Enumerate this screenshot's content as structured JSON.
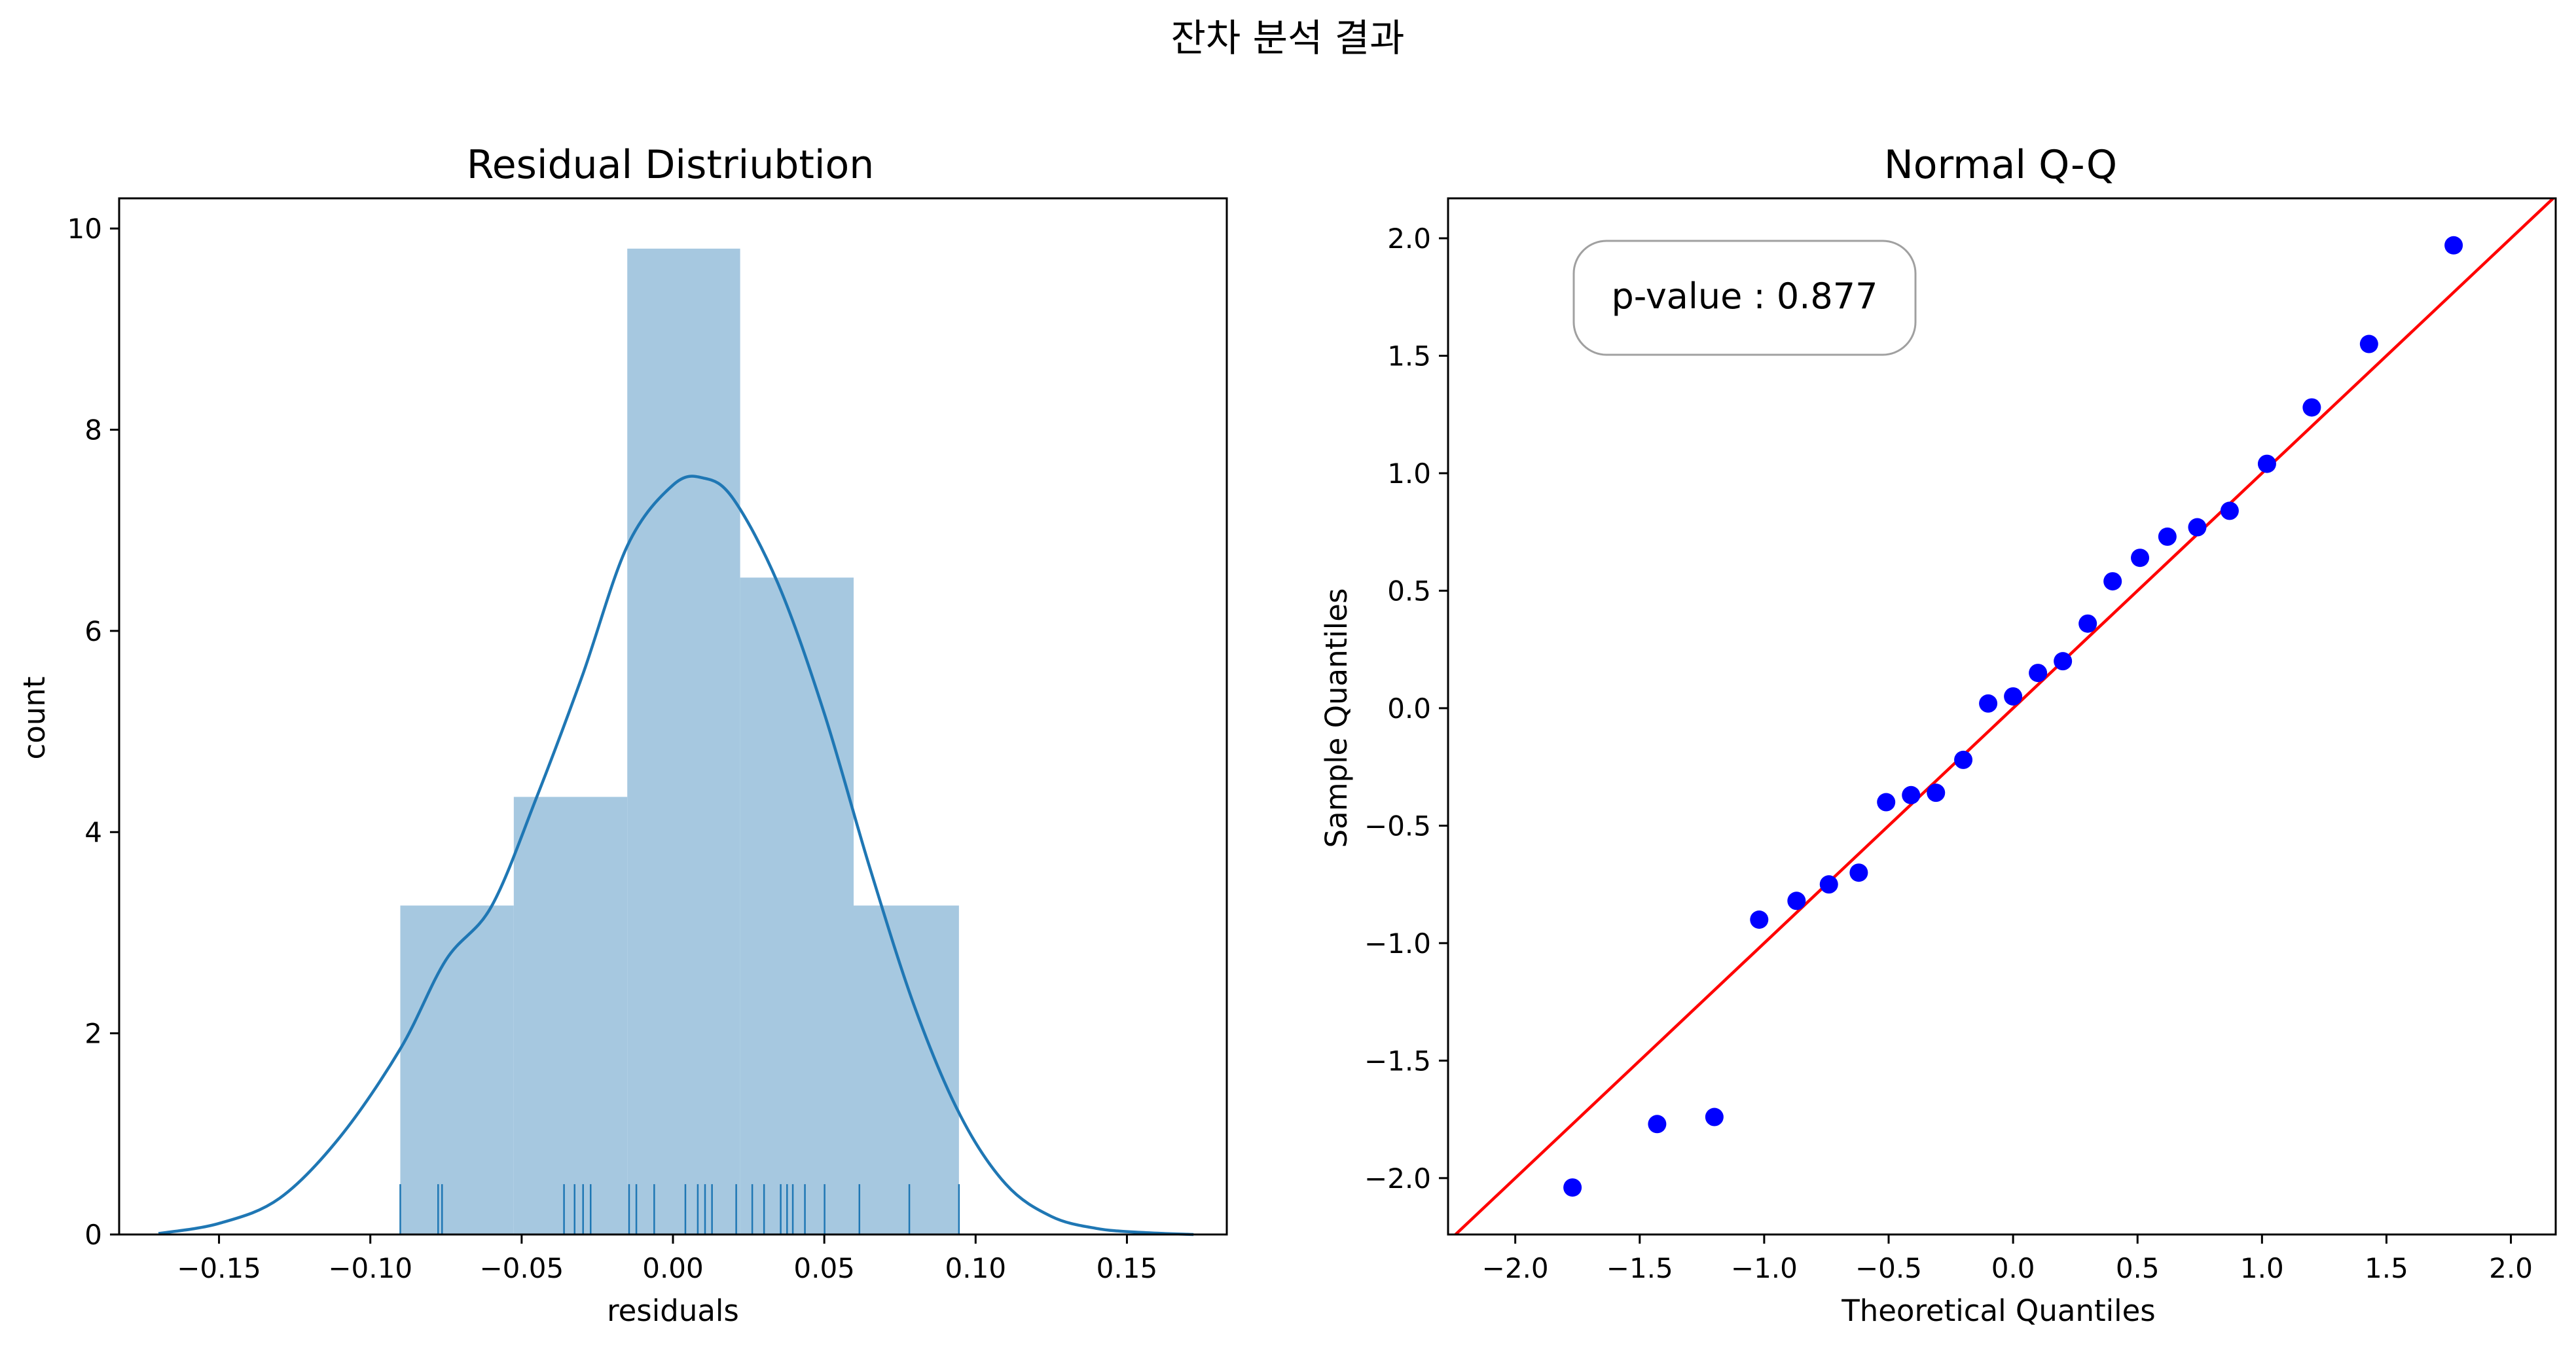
{
  "figure_title": "잔차 분석 결과",
  "chart_data": [
    {
      "type": "bar",
      "title": "Residual Distriubtion",
      "xlabel": "residuals",
      "ylabel": "count",
      "xlim": [
        -0.183,
        0.183
      ],
      "ylim": [
        0,
        10.3
      ],
      "xticks": [
        -0.15,
        -0.1,
        -0.05,
        0.0,
        0.05,
        0.1,
        0.15
      ],
      "xtick_labels": [
        "−0.15",
        "−0.10",
        "−0.05",
        "0.00",
        "0.05",
        "0.10",
        "0.15"
      ],
      "yticks": [
        0,
        2,
        4,
        6,
        8,
        10
      ],
      "ytick_labels": [
        "0",
        "2",
        "4",
        "6",
        "8",
        "10"
      ],
      "histogram": {
        "bin_edges": [
          -0.0901,
          -0.0526,
          -0.0151,
          0.0222,
          0.0597,
          0.0945
        ],
        "values": [
          3.27,
          4.35,
          9.8,
          6.53,
          3.27
        ]
      },
      "kde_curve": {
        "x": [
          -0.17,
          -0.15,
          -0.13,
          -0.11,
          -0.09,
          -0.075,
          -0.06,
          -0.045,
          -0.03,
          -0.015,
          0.0,
          0.01,
          0.02,
          0.035,
          0.05,
          0.065,
          0.08,
          0.095,
          0.11,
          0.125,
          0.14,
          0.155,
          0.172
        ],
        "y": [
          0.01,
          0.11,
          0.36,
          0.97,
          1.85,
          2.73,
          3.26,
          4.35,
          5.55,
          6.85,
          7.45,
          7.52,
          7.31,
          6.45,
          5.18,
          3.65,
          2.25,
          1.18,
          0.5,
          0.18,
          0.06,
          0.02,
          0.0
        ]
      },
      "rug": [
        -0.0901,
        -0.0776,
        -0.0763,
        -0.036,
        -0.0325,
        -0.0297,
        -0.0272,
        -0.0145,
        -0.0121,
        -0.0062,
        0.0041,
        0.0082,
        0.0106,
        0.0129,
        0.0209,
        0.0262,
        0.0301,
        0.0356,
        0.0377,
        0.0396,
        0.0436,
        0.0501,
        0.0616,
        0.0781,
        0.0945
      ],
      "color": "#1f77b4",
      "bar_color": "#a6c8e0"
    },
    {
      "type": "scatter",
      "title": "Normal Q-Q",
      "xlabel": "Theoretical Quantiles",
      "ylabel": "Sample Quantiles",
      "xlim": [
        -2.27,
        2.18
      ],
      "ylim": [
        -2.24,
        2.17
      ],
      "xticks": [
        -2.0,
        -1.5,
        -1.0,
        -0.5,
        0.0,
        0.5,
        1.0,
        1.5,
        2.0
      ],
      "xtick_labels": [
        "−2.0",
        "−1.5",
        "−1.0",
        "−0.5",
        "0.0",
        "0.5",
        "1.0",
        "1.5",
        "2.0"
      ],
      "yticks": [
        -2.0,
        -1.5,
        -1.0,
        -0.5,
        0.0,
        0.5,
        1.0,
        1.5,
        2.0
      ],
      "ytick_labels": [
        "−2.0",
        "−1.5",
        "−1.0",
        "−0.5",
        "0.0",
        "0.5",
        "1.0",
        "1.5",
        "2.0"
      ],
      "points": {
        "x": [
          -1.77,
          -1.43,
          -1.2,
          -1.02,
          -0.87,
          -0.74,
          -0.62,
          -0.51,
          -0.41,
          -0.31,
          -0.2,
          -0.1,
          0.0,
          0.1,
          0.2,
          0.3,
          0.4,
          0.51,
          0.62,
          0.74,
          0.87,
          1.02,
          1.2,
          1.43,
          1.77
        ],
        "y": [
          -2.04,
          -1.77,
          -1.74,
          -0.9,
          -0.82,
          -0.75,
          -0.7,
          -0.4,
          -0.37,
          -0.36,
          -0.22,
          0.02,
          0.05,
          0.15,
          0.2,
          0.36,
          0.54,
          0.64,
          0.73,
          0.77,
          0.84,
          1.04,
          1.28,
          1.55,
          1.97
        ]
      },
      "reference_line": {
        "slope": 1,
        "intercept": 0,
        "color": "#ff0000"
      },
      "point_color": "#0000ff",
      "annotation": "p-value : 0.877"
    }
  ]
}
